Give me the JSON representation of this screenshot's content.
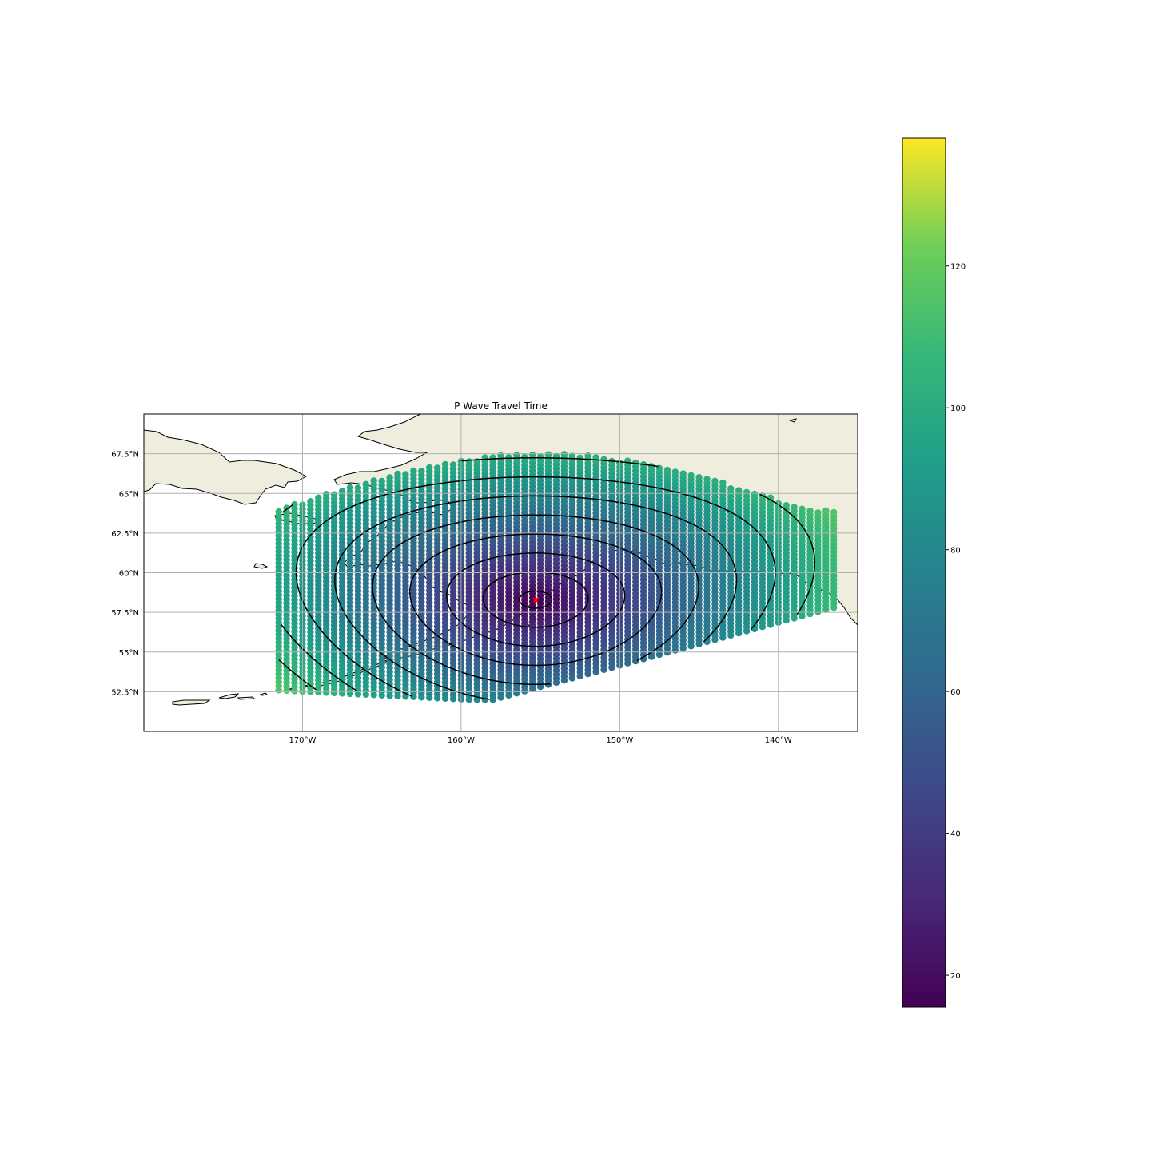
{
  "chart_data": {
    "type": "scatter",
    "title": "P Wave Travel Time",
    "map_extent": {
      "lon": [
        -180,
        -135
      ],
      "lat": [
        50,
        70
      ]
    },
    "x_ticks": [
      {
        "value": -170,
        "label": "170°W"
      },
      {
        "value": -160,
        "label": "160°W"
      },
      {
        "value": -150,
        "label": "150°W"
      },
      {
        "value": -140,
        "label": "140°W"
      }
    ],
    "y_ticks": [
      {
        "value": 52.5,
        "label": "52.5°N"
      },
      {
        "value": 55,
        "label": "55°N"
      },
      {
        "value": 57.5,
        "label": "57.5°N"
      },
      {
        "value": 60,
        "label": "60°N"
      },
      {
        "value": 62.5,
        "label": "62.5°N"
      },
      {
        "value": 65,
        "label": "65°N"
      },
      {
        "value": 67.5,
        "label": "67.5°N"
      }
    ],
    "grid": true,
    "epicenter": {
      "lon": -155.3,
      "lat": 58.3
    },
    "grid_points": {
      "lon_range": [
        -171.5,
        -136.5
      ],
      "lon_step": 0.5,
      "lat_step": 0.25
    },
    "wave_speed_deg_per_unit": 0.12,
    "min_value": 15.5,
    "value_range": [
      15.5,
      138
    ],
    "contour_levels": [
      20,
      30,
      40,
      50,
      60,
      70,
      80,
      90,
      100,
      110,
      120,
      130
    ],
    "colorbar": {
      "ticks": [
        20,
        40,
        60,
        80,
        100,
        120
      ],
      "range": [
        15.5,
        138
      ],
      "colormap": "viridis"
    },
    "colors": {
      "land": "#efedde",
      "epicenter": "#ff0000",
      "grid": "#b0b0b0"
    }
  }
}
